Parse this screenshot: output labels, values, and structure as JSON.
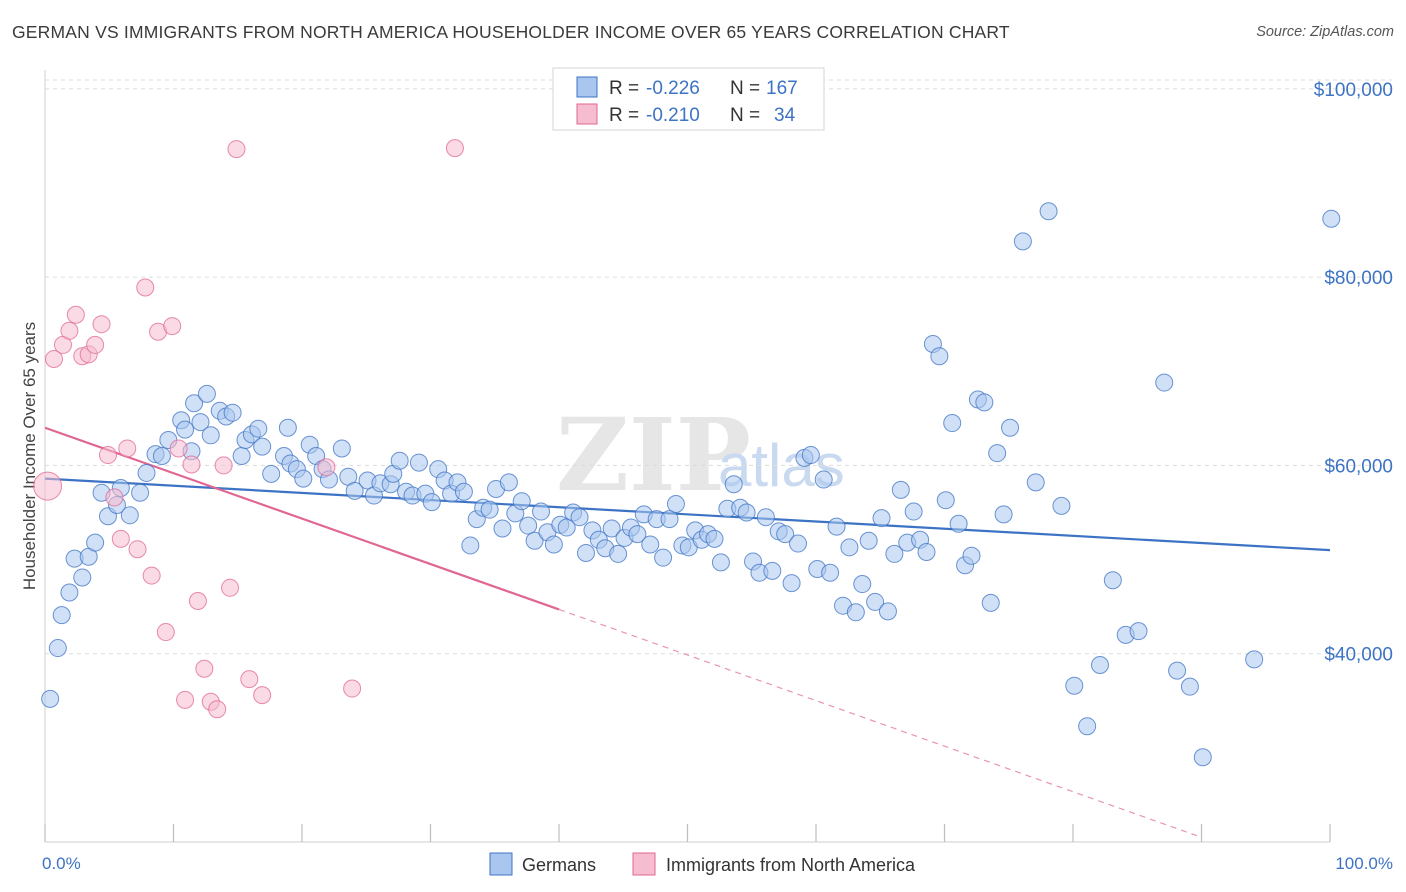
{
  "title": "GERMAN VS IMMIGRANTS FROM NORTH AMERICA HOUSEHOLDER INCOME OVER 65 YEARS CORRELATION CHART",
  "source": "Source: ZipAtlas.com",
  "watermark": {
    "zip": "ZIP",
    "atlas": "atlas"
  },
  "colors": {
    "blue": "#3d73c4",
    "blue_fill": "#a9c6ee",
    "pink": "#e06694",
    "pink_fill": "#f6bcd0",
    "grid": "#dcdcdc"
  },
  "legend": {
    "rows": [
      {
        "r_label": "R =",
        "r_value": "-0.226",
        "n_label": "N =",
        "n_value": "167"
      },
      {
        "r_label": "R =",
        "r_value": "-0.210",
        "n_label": "N =",
        "n_value": "34"
      }
    ]
  },
  "bottom_legend": {
    "series1": "Germans",
    "series2": "Immigrants from North America"
  },
  "chart_data": {
    "type": "scatter",
    "title": "GERMAN VS IMMIGRANTS FROM NORTH AMERICA HOUSEHOLDER INCOME OVER 65 YEARS CORRELATION CHART",
    "xlabel": "",
    "ylabel": "Householder Income Over 65 years",
    "xlim": [
      0,
      100
    ],
    "ylim": [
      20000,
      102000
    ],
    "x_tick_labels": [
      "0.0%",
      "100.0%"
    ],
    "y_ticks": [
      40000,
      60000,
      80000,
      100000
    ],
    "y_tick_labels": [
      "$40,000",
      "$60,000",
      "$80,000",
      "$100,000"
    ],
    "grid": true,
    "legend_position": "top-center",
    "series": [
      {
        "name": "Germans",
        "color": "#3d73c4",
        "trend": {
          "x": [
            0,
            100
          ],
          "y": [
            58600,
            51000
          ]
        },
        "points": [
          [
            0.4,
            35200
          ],
          [
            1.0,
            40600
          ],
          [
            1.3,
            44100
          ],
          [
            1.9,
            46500
          ],
          [
            2.3,
            50100
          ],
          [
            2.9,
            48100
          ],
          [
            3.4,
            50300
          ],
          [
            3.9,
            51800
          ],
          [
            4.4,
            57100
          ],
          [
            4.9,
            54600
          ],
          [
            5.6,
            55800
          ],
          [
            6.6,
            54700
          ],
          [
            5.9,
            57600
          ],
          [
            7.4,
            57100
          ],
          [
            7.9,
            59200
          ],
          [
            8.6,
            61200
          ],
          [
            9.1,
            61000
          ],
          [
            9.6,
            62700
          ],
          [
            10.6,
            64800
          ],
          [
            10.9,
            63800
          ],
          [
            11.4,
            61500
          ],
          [
            11.6,
            66600
          ],
          [
            12.1,
            64600
          ],
          [
            12.6,
            67600
          ],
          [
            12.9,
            63200
          ],
          [
            13.6,
            65800
          ],
          [
            14.1,
            65200
          ],
          [
            14.6,
            65600
          ],
          [
            15.3,
            61000
          ],
          [
            15.6,
            62700
          ],
          [
            16.1,
            63300
          ],
          [
            16.6,
            63900
          ],
          [
            16.9,
            62000
          ],
          [
            17.6,
            59100
          ],
          [
            18.6,
            61000
          ],
          [
            18.9,
            64000
          ],
          [
            19.1,
            60200
          ],
          [
            19.6,
            59600
          ],
          [
            20.1,
            58600
          ],
          [
            20.6,
            62200
          ],
          [
            21.1,
            61000
          ],
          [
            21.6,
            59600
          ],
          [
            22.1,
            58500
          ],
          [
            23.1,
            61800
          ],
          [
            23.6,
            58800
          ],
          [
            24.1,
            57300
          ],
          [
            25.1,
            58400
          ],
          [
            25.6,
            56800
          ],
          [
            26.1,
            58100
          ],
          [
            26.9,
            58000
          ],
          [
            27.1,
            59100
          ],
          [
            27.6,
            60500
          ],
          [
            28.1,
            57200
          ],
          [
            28.6,
            56800
          ],
          [
            29.1,
            60300
          ],
          [
            29.6,
            57000
          ],
          [
            30.1,
            56100
          ],
          [
            30.6,
            59600
          ],
          [
            31.1,
            58400
          ],
          [
            31.6,
            57000
          ],
          [
            32.1,
            58200
          ],
          [
            32.6,
            57200
          ],
          [
            33.1,
            51500
          ],
          [
            33.6,
            54300
          ],
          [
            34.1,
            55500
          ],
          [
            34.6,
            55300
          ],
          [
            35.1,
            57500
          ],
          [
            35.6,
            53300
          ],
          [
            36.1,
            58200
          ],
          [
            36.6,
            54900
          ],
          [
            37.1,
            56200
          ],
          [
            37.6,
            53600
          ],
          [
            38.1,
            52000
          ],
          [
            38.6,
            55100
          ],
          [
            39.1,
            52900
          ],
          [
            39.6,
            51600
          ],
          [
            40.1,
            53700
          ],
          [
            40.6,
            53400
          ],
          [
            41.1,
            55000
          ],
          [
            41.6,
            54500
          ],
          [
            42.1,
            50700
          ],
          [
            42.6,
            53100
          ],
          [
            43.1,
            52100
          ],
          [
            43.6,
            51200
          ],
          [
            44.1,
            53300
          ],
          [
            44.6,
            50600
          ],
          [
            45.1,
            52300
          ],
          [
            45.6,
            53400
          ],
          [
            46.1,
            52700
          ],
          [
            46.6,
            54800
          ],
          [
            47.1,
            51600
          ],
          [
            47.6,
            54300
          ],
          [
            48.1,
            50200
          ],
          [
            48.6,
            54300
          ],
          [
            49.1,
            55900
          ],
          [
            49.6,
            51500
          ],
          [
            50.1,
            51300
          ],
          [
            50.6,
            53100
          ],
          [
            51.1,
            52100
          ],
          [
            51.6,
            52700
          ],
          [
            52.1,
            52200
          ],
          [
            52.6,
            49700
          ],
          [
            53.1,
            55400
          ],
          [
            53.6,
            58000
          ],
          [
            54.1,
            55500
          ],
          [
            54.6,
            55000
          ],
          [
            55.1,
            49800
          ],
          [
            55.6,
            48600
          ],
          [
            56.1,
            54500
          ],
          [
            56.6,
            48800
          ],
          [
            57.1,
            53000
          ],
          [
            57.6,
            52700
          ],
          [
            58.1,
            47500
          ],
          [
            58.6,
            51700
          ],
          [
            59.1,
            60800
          ],
          [
            59.6,
            61100
          ],
          [
            60.1,
            49000
          ],
          [
            60.6,
            58500
          ],
          [
            61.1,
            48600
          ],
          [
            61.6,
            53500
          ],
          [
            62.1,
            45100
          ],
          [
            62.6,
            51300
          ],
          [
            63.1,
            44400
          ],
          [
            63.6,
            47400
          ],
          [
            64.1,
            52000
          ],
          [
            64.6,
            45500
          ],
          [
            65.1,
            54400
          ],
          [
            65.6,
            44500
          ],
          [
            66.1,
            50600
          ],
          [
            66.6,
            57400
          ],
          [
            67.1,
            51800
          ],
          [
            67.6,
            55100
          ],
          [
            68.1,
            52100
          ],
          [
            68.6,
            50800
          ],
          [
            69.1,
            72900
          ],
          [
            69.6,
            71600
          ],
          [
            70.1,
            56300
          ],
          [
            70.6,
            64500
          ],
          [
            71.1,
            53800
          ],
          [
            71.6,
            49400
          ],
          [
            72.1,
            50400
          ],
          [
            72.6,
            67000
          ],
          [
            73.1,
            66700
          ],
          [
            73.6,
            45400
          ],
          [
            74.1,
            61300
          ],
          [
            74.6,
            54800
          ],
          [
            75.1,
            64000
          ],
          [
            76.1,
            83800
          ],
          [
            77.1,
            58200
          ],
          [
            78.1,
            87000
          ],
          [
            79.1,
            55700
          ],
          [
            80.1,
            36600
          ],
          [
            81.1,
            32300
          ],
          [
            82.1,
            38800
          ],
          [
            83.1,
            47800
          ],
          [
            84.1,
            42000
          ],
          [
            85.1,
            42400
          ],
          [
            87.1,
            68800
          ],
          [
            88.1,
            38200
          ],
          [
            89.1,
            36500
          ],
          [
            90.1,
            29000
          ],
          [
            94.1,
            39400
          ],
          [
            100.1,
            86200
          ]
        ]
      },
      {
        "name": "Immigrants from North America",
        "color": "#e06694",
        "trend": {
          "x": [
            0,
            40
          ],
          "y": [
            64000,
            44700
          ]
        },
        "trend_dashed": {
          "x": [
            40,
            90
          ],
          "y": [
            44700,
            20500
          ]
        },
        "points": [
          [
            0.2,
            57800
          ],
          [
            0.7,
            71300
          ],
          [
            1.4,
            72800
          ],
          [
            1.9,
            74300
          ],
          [
            2.4,
            76000
          ],
          [
            2.9,
            71600
          ],
          [
            3.4,
            71800
          ],
          [
            3.9,
            72800
          ],
          [
            4.4,
            75000
          ],
          [
            4.9,
            61100
          ],
          [
            5.4,
            56600
          ],
          [
            5.9,
            52200
          ],
          [
            6.4,
            61800
          ],
          [
            7.2,
            51100
          ],
          [
            7.8,
            78900
          ],
          [
            8.3,
            48300
          ],
          [
            8.8,
            74200
          ],
          [
            9.4,
            42300
          ],
          [
            9.9,
            74800
          ],
          [
            10.4,
            61800
          ],
          [
            10.9,
            35100
          ],
          [
            11.4,
            60100
          ],
          [
            11.9,
            45600
          ],
          [
            12.4,
            38400
          ],
          [
            12.9,
            34900
          ],
          [
            13.4,
            34100
          ],
          [
            13.9,
            60000
          ],
          [
            14.4,
            47000
          ],
          [
            14.9,
            93600
          ],
          [
            15.9,
            37300
          ],
          [
            16.9,
            35600
          ],
          [
            21.9,
            59800
          ],
          [
            23.9,
            36300
          ],
          [
            31.9,
            93700
          ]
        ]
      }
    ]
  }
}
